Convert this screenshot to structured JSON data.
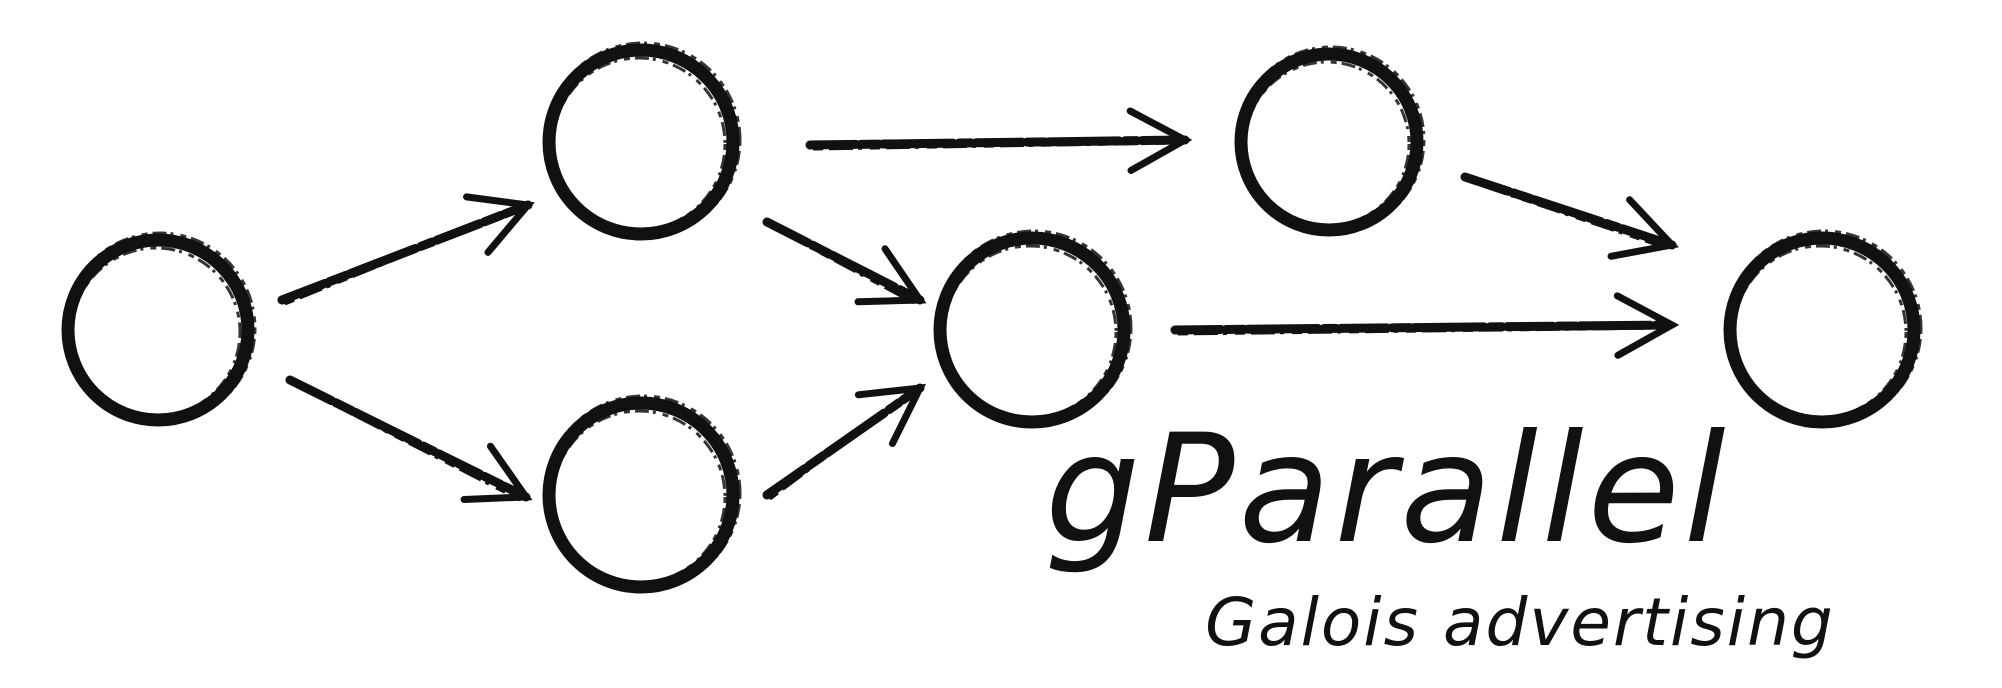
{
  "logo": {
    "title": "gParallel",
    "subtitle": "Galois advertising",
    "ink_color": "#111111",
    "background_color": "#ffffff"
  },
  "diagram": {
    "nodes": [
      "n1",
      "n2",
      "n3",
      "n4",
      "n5",
      "n6",
      "n7"
    ],
    "edges": [
      [
        "n1",
        "n2"
      ],
      [
        "n1",
        "n3"
      ],
      [
        "n2",
        "n4"
      ],
      [
        "n3",
        "n4"
      ],
      [
        "n2",
        "n5"
      ],
      [
        "n5",
        "n7"
      ],
      [
        "n4",
        "n7"
      ]
    ]
  }
}
